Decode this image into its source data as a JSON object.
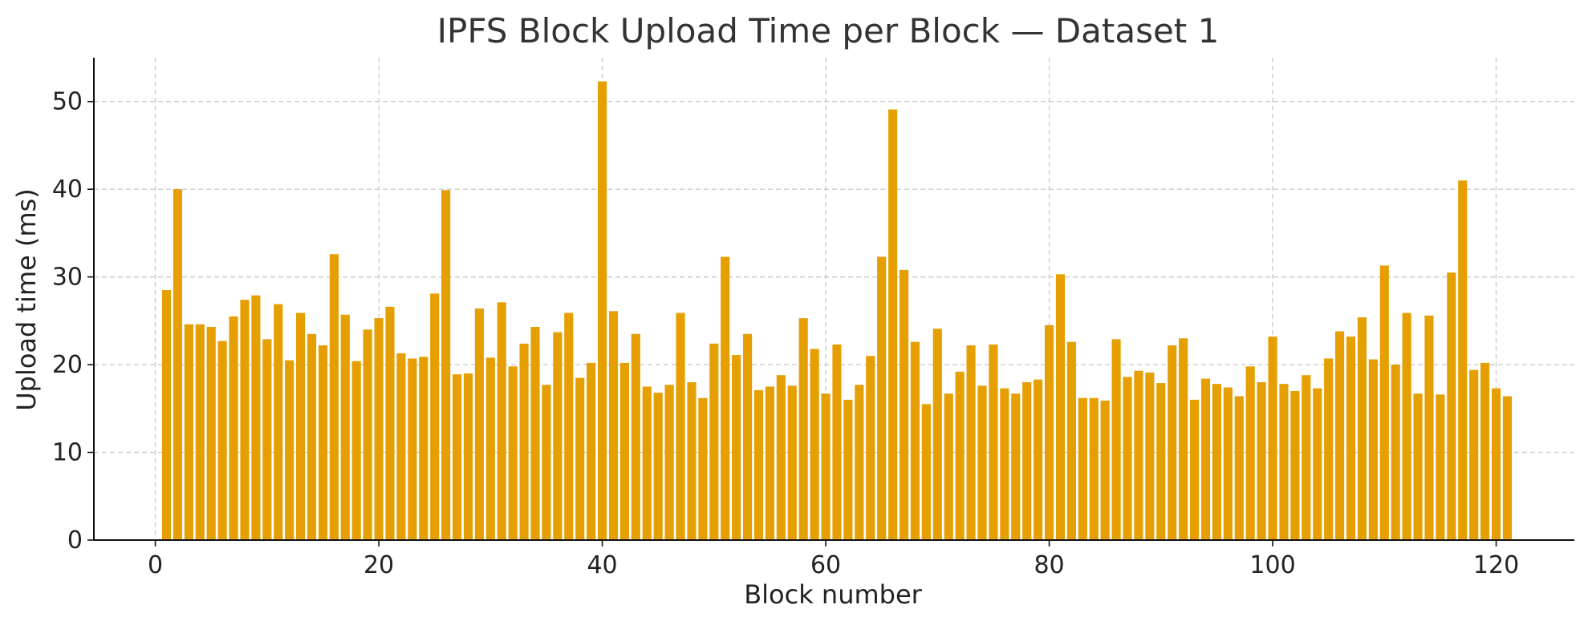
{
  "chart_data": {
    "type": "bar",
    "title": "IPFS Block Upload Time per Block — Dataset 1",
    "xlabel": "Block number",
    "ylabel": "Upload time (ms)",
    "xlim": [
      -5.5,
      127
    ],
    "ylim": [
      0,
      55
    ],
    "xticks": [
      0,
      20,
      40,
      60,
      80,
      100,
      120
    ],
    "yticks": [
      0,
      10,
      20,
      30,
      40,
      50
    ],
    "grid": true,
    "bar_color": "#E69F00",
    "x": [
      1,
      2,
      3,
      4,
      5,
      6,
      7,
      8,
      9,
      10,
      11,
      12,
      13,
      14,
      15,
      16,
      17,
      18,
      19,
      20,
      21,
      22,
      23,
      24,
      25,
      26,
      27,
      28,
      29,
      30,
      31,
      32,
      33,
      34,
      35,
      36,
      37,
      38,
      39,
      40,
      41,
      42,
      43,
      44,
      45,
      46,
      47,
      48,
      49,
      50,
      51,
      52,
      53,
      54,
      55,
      56,
      57,
      58,
      59,
      60,
      61,
      62,
      63,
      64,
      65,
      66,
      67,
      68,
      69,
      70,
      71,
      72,
      73,
      74,
      75,
      76,
      77,
      78,
      79,
      80,
      81,
      82,
      83,
      84,
      85,
      86,
      87,
      88,
      89,
      90,
      91,
      92,
      93,
      94,
      95,
      96,
      97,
      98,
      99,
      100,
      101,
      102,
      103,
      104,
      105,
      106,
      107,
      108,
      109,
      110,
      111,
      112,
      113,
      114,
      115,
      116,
      117,
      118,
      119,
      120,
      121
    ],
    "values": [
      28.5,
      40.0,
      24.6,
      24.6,
      24.3,
      22.7,
      25.5,
      27.4,
      27.9,
      22.9,
      26.9,
      20.5,
      25.9,
      23.5,
      22.2,
      32.6,
      25.7,
      20.4,
      24.0,
      25.3,
      26.6,
      21.3,
      20.7,
      20.9,
      28.1,
      39.9,
      18.9,
      19.0,
      26.4,
      20.8,
      27.1,
      19.8,
      22.4,
      24.3,
      17.7,
      23.7,
      25.9,
      18.5,
      20.2,
      52.3,
      26.1,
      20.2,
      23.5,
      17.5,
      16.8,
      17.7,
      25.9,
      18.0,
      16.2,
      22.4,
      32.3,
      21.1,
      23.5,
      17.1,
      17.5,
      18.8,
      17.6,
      25.3,
      21.8,
      16.7,
      22.3,
      16.0,
      17.7,
      21.0,
      32.3,
      49.1,
      30.8,
      22.6,
      15.5,
      24.1,
      16.7,
      19.2,
      22.2,
      17.6,
      22.3,
      17.3,
      16.7,
      18.0,
      18.3,
      24.5,
      30.3,
      22.6,
      16.2,
      16.2,
      15.9,
      22.9,
      18.6,
      19.3,
      19.1,
      17.9,
      22.2,
      23.0,
      16.0,
      18.4,
      17.8,
      17.4,
      16.4,
      19.8,
      18.0,
      23.2,
      17.8,
      17.0,
      18.8,
      17.3,
      20.7,
      23.8,
      23.2,
      25.4,
      20.6,
      31.3,
      20.0,
      25.9,
      16.7,
      25.6,
      16.6,
      30.5,
      41.0,
      19.4,
      20.2,
      17.3,
      16.4
    ]
  }
}
